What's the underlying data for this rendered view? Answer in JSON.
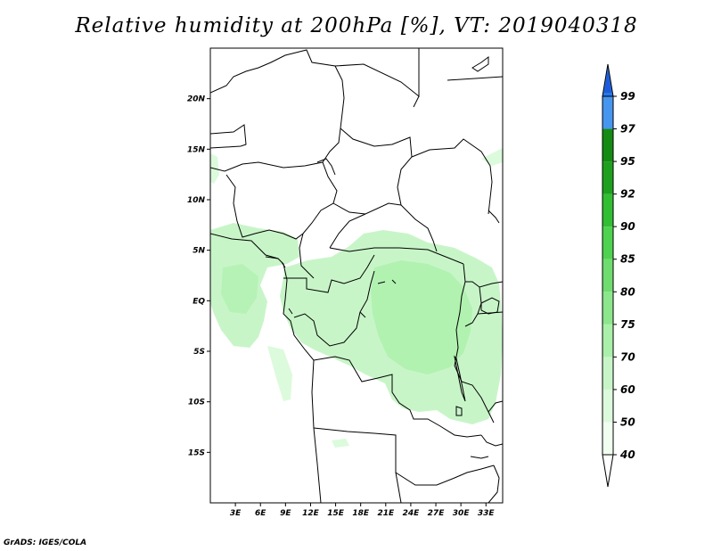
{
  "title": "Relative humidity at 200hPa [%], VT: 2019040318",
  "credit": "GrADS: IGES/COLA",
  "map": {
    "lon_range": [
      0,
      35
    ],
    "lat_range": [
      -20,
      25
    ],
    "lat_ticks": [
      {
        "value": 20,
        "label": "20N"
      },
      {
        "value": 15,
        "label": "15N"
      },
      {
        "value": 10,
        "label": "10N"
      },
      {
        "value": 5,
        "label": "5N"
      },
      {
        "value": 0,
        "label": "EQ"
      },
      {
        "value": -5,
        "label": "5S"
      },
      {
        "value": -10,
        "label": "10S"
      },
      {
        "value": -15,
        "label": "15S"
      }
    ],
    "lon_ticks": [
      {
        "value": 3,
        "label": "3E"
      },
      {
        "value": 6,
        "label": "6E"
      },
      {
        "value": 9,
        "label": "9E"
      },
      {
        "value": 12,
        "label": "12E"
      },
      {
        "value": 15,
        "label": "15E"
      },
      {
        "value": 18,
        "label": "18E"
      },
      {
        "value": 21,
        "label": "21E"
      },
      {
        "value": 24,
        "label": "24E"
      },
      {
        "value": 27,
        "label": "27E"
      },
      {
        "value": 30,
        "label": "30E"
      },
      {
        "value": 33,
        "label": "33E"
      }
    ]
  },
  "colorbar": {
    "levels": [
      {
        "label": "40",
        "color": "#f0fff0"
      },
      {
        "label": "50",
        "color": "#dcfadc"
      },
      {
        "label": "60",
        "color": "#c8f5c8"
      },
      {
        "label": "70",
        "color": "#aaf0aa"
      },
      {
        "label": "75",
        "color": "#8ce68c"
      },
      {
        "label": "80",
        "color": "#6edc6e"
      },
      {
        "label": "85",
        "color": "#4fd24f"
      },
      {
        "label": "90",
        "color": "#32be32"
      },
      {
        "label": "92",
        "color": "#1ea01e"
      },
      {
        "label": "95",
        "color": "#148c14"
      },
      {
        "label": "97",
        "color": "#4696f0"
      },
      {
        "label": "99",
        "color": "#2878e6"
      }
    ],
    "top_color": "#1e5adc",
    "bottom_color": "#ffffff"
  }
}
